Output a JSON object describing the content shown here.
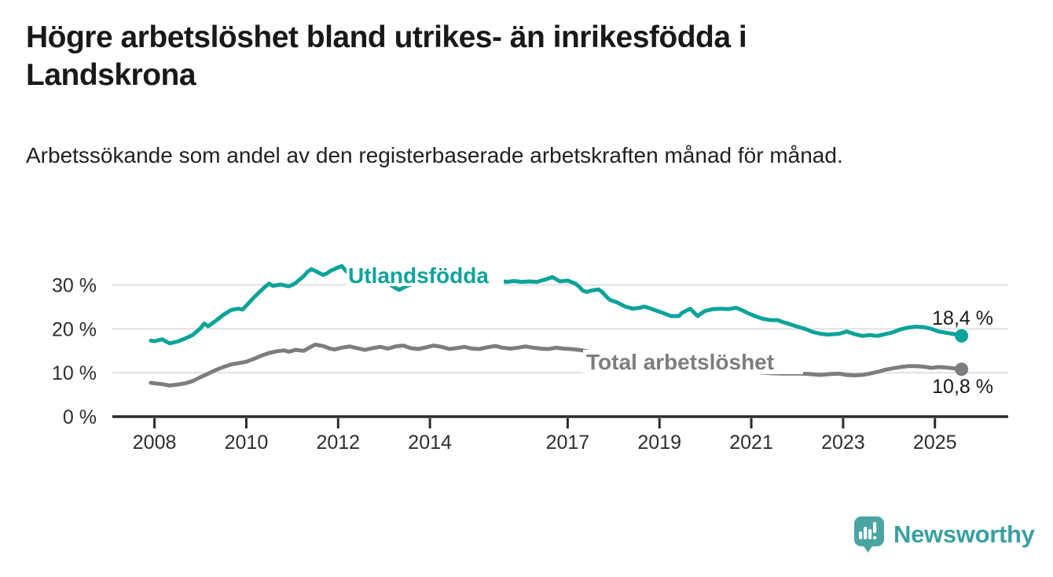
{
  "header": {
    "title": "Högre arbetslöshet bland utrikes- än inrikesfödda i Landskrona",
    "subtitle": "Arbetssökande som andel av den registerbaserade arbetskraften månad för månad."
  },
  "branding": {
    "logo_text": "Newsworthy",
    "logo_icon": "bar-chart-speech-bubble-icon",
    "logo_icon_color": "#4aa5a2",
    "logo_text_color": "#3aa0a0"
  },
  "colors": {
    "background": "#ffffff",
    "title_text": "#191919",
    "subtitle_text": "#212121",
    "grid_line": "#e0e0e0",
    "axis_line": "#2b2b2b",
    "tick_label": "#2e2e2e",
    "end_label": "#1a1a1a",
    "series_foreign_born": "#0ca39a",
    "series_total": "#7d7d81"
  },
  "chart_data": {
    "type": "line",
    "title": "",
    "xlabel": "",
    "ylabel": "",
    "unit": "%",
    "x_unit": "year (monthly observations)",
    "xlim": [
      2007.75,
      2026.3
    ],
    "ylim": [
      0,
      36.5
    ],
    "grid": "horizontal",
    "legend_position": "inline-labels",
    "x_tick_values": [
      2008,
      2010,
      2012,
      2014,
      2017,
      2019,
      2021,
      2023,
      2025
    ],
    "x_tick_labels": [
      "2008",
      "2010",
      "2012",
      "2014",
      "2017",
      "2019",
      "2021",
      "2023",
      "2025"
    ],
    "y_tick_values": [
      0,
      10,
      20,
      30
    ],
    "y_tick_labels": [
      "0 %",
      "10 %",
      "20 %",
      "30 %"
    ],
    "series": [
      {
        "name": "Utlandsfödda",
        "color": "#0ca39a",
        "end_value": 18.4,
        "end_label": "18,4 %",
        "points": [
          [
            2007.92,
            17.3
          ],
          [
            2008.0,
            17.2
          ],
          [
            2008.17,
            17.6
          ],
          [
            2008.33,
            16.7
          ],
          [
            2008.5,
            17.1
          ],
          [
            2008.67,
            17.8
          ],
          [
            2008.83,
            18.6
          ],
          [
            2009.0,
            20.1
          ],
          [
            2009.08,
            21.2
          ],
          [
            2009.17,
            20.6
          ],
          [
            2009.33,
            21.8
          ],
          [
            2009.5,
            23.2
          ],
          [
            2009.67,
            24.3
          ],
          [
            2009.83,
            24.6
          ],
          [
            2009.92,
            24.4
          ],
          [
            2010.0,
            25.3
          ],
          [
            2010.17,
            27.2
          ],
          [
            2010.33,
            28.8
          ],
          [
            2010.42,
            29.7
          ],
          [
            2010.5,
            30.3
          ],
          [
            2010.58,
            29.8
          ],
          [
            2010.75,
            30.1
          ],
          [
            2010.92,
            29.7
          ],
          [
            2011.0,
            30.0
          ],
          [
            2011.08,
            30.5
          ],
          [
            2011.25,
            32.0
          ],
          [
            2011.33,
            33.0
          ],
          [
            2011.42,
            33.6
          ],
          [
            2011.5,
            33.2
          ],
          [
            2011.58,
            32.8
          ],
          [
            2011.67,
            32.3
          ],
          [
            2011.75,
            32.6
          ],
          [
            2011.83,
            33.2
          ],
          [
            2011.92,
            33.6
          ],
          [
            2012.0,
            34.0
          ],
          [
            2012.08,
            34.3
          ],
          [
            2012.17,
            33.2
          ],
          [
            2012.25,
            32.6
          ],
          [
            2012.42,
            32.1
          ],
          [
            2012.58,
            31.8
          ],
          [
            2012.75,
            31.4
          ],
          [
            2012.92,
            31.0
          ],
          [
            2013.08,
            30.4
          ],
          [
            2013.25,
            29.3
          ],
          [
            2013.33,
            28.9
          ],
          [
            2013.5,
            29.8
          ],
          [
            2013.67,
            30.3
          ],
          [
            2013.83,
            30.7
          ],
          [
            2014.0,
            30.9
          ],
          [
            2014.25,
            30.7
          ],
          [
            2014.5,
            30.5
          ],
          [
            2014.75,
            30.7
          ],
          [
            2015.0,
            30.9
          ],
          [
            2015.25,
            30.8
          ],
          [
            2015.5,
            31.0
          ],
          [
            2015.67,
            30.7
          ],
          [
            2015.83,
            30.9
          ],
          [
            2016.0,
            30.7
          ],
          [
            2016.17,
            30.8
          ],
          [
            2016.33,
            30.7
          ],
          [
            2016.5,
            31.2
          ],
          [
            2016.67,
            31.8
          ],
          [
            2016.83,
            30.8
          ],
          [
            2017.0,
            31.0
          ],
          [
            2017.17,
            30.3
          ],
          [
            2017.25,
            29.6
          ],
          [
            2017.33,
            28.7
          ],
          [
            2017.42,
            28.4
          ],
          [
            2017.5,
            28.7
          ],
          [
            2017.67,
            29.0
          ],
          [
            2017.75,
            28.4
          ],
          [
            2017.83,
            27.5
          ],
          [
            2017.92,
            26.6
          ],
          [
            2018.08,
            26.0
          ],
          [
            2018.25,
            25.1
          ],
          [
            2018.42,
            24.6
          ],
          [
            2018.58,
            24.8
          ],
          [
            2018.67,
            25.1
          ],
          [
            2018.92,
            24.2
          ],
          [
            2019.08,
            23.6
          ],
          [
            2019.25,
            22.9
          ],
          [
            2019.42,
            22.9
          ],
          [
            2019.5,
            23.7
          ],
          [
            2019.67,
            24.6
          ],
          [
            2019.83,
            22.9
          ],
          [
            2019.92,
            23.6
          ],
          [
            2020.0,
            24.1
          ],
          [
            2020.17,
            24.5
          ],
          [
            2020.33,
            24.6
          ],
          [
            2020.5,
            24.5
          ],
          [
            2020.67,
            24.8
          ],
          [
            2020.83,
            24.1
          ],
          [
            2020.92,
            23.6
          ],
          [
            2021.08,
            22.9
          ],
          [
            2021.25,
            22.3
          ],
          [
            2021.42,
            22.0
          ],
          [
            2021.58,
            22.0
          ],
          [
            2021.67,
            21.6
          ],
          [
            2021.83,
            21.1
          ],
          [
            2022.0,
            20.5
          ],
          [
            2022.17,
            20.0
          ],
          [
            2022.33,
            19.3
          ],
          [
            2022.5,
            18.9
          ],
          [
            2022.67,
            18.7
          ],
          [
            2022.92,
            18.9
          ],
          [
            2023.08,
            19.4
          ],
          [
            2023.25,
            18.8
          ],
          [
            2023.42,
            18.4
          ],
          [
            2023.58,
            18.6
          ],
          [
            2023.75,
            18.4
          ],
          [
            2023.92,
            18.8
          ],
          [
            2024.08,
            19.2
          ],
          [
            2024.25,
            19.9
          ],
          [
            2024.42,
            20.3
          ],
          [
            2024.58,
            20.5
          ],
          [
            2024.75,
            20.4
          ],
          [
            2024.92,
            20.0
          ],
          [
            2025.08,
            19.4
          ],
          [
            2025.25,
            19.1
          ],
          [
            2025.42,
            18.8
          ],
          [
            2025.58,
            18.4
          ]
        ]
      },
      {
        "name": "Total arbetslöshet",
        "color": "#7d7d81",
        "end_value": 10.8,
        "end_label": "10,8 %",
        "points": [
          [
            2007.92,
            7.7
          ],
          [
            2008.0,
            7.6
          ],
          [
            2008.17,
            7.4
          ],
          [
            2008.33,
            7.1
          ],
          [
            2008.5,
            7.3
          ],
          [
            2008.67,
            7.6
          ],
          [
            2008.83,
            8.1
          ],
          [
            2009.0,
            9.0
          ],
          [
            2009.17,
            9.8
          ],
          [
            2009.33,
            10.6
          ],
          [
            2009.5,
            11.3
          ],
          [
            2009.67,
            11.9
          ],
          [
            2009.83,
            12.2
          ],
          [
            2010.0,
            12.5
          ],
          [
            2010.17,
            13.2
          ],
          [
            2010.33,
            13.9
          ],
          [
            2010.5,
            14.5
          ],
          [
            2010.67,
            14.9
          ],
          [
            2010.83,
            15.1
          ],
          [
            2010.92,
            14.8
          ],
          [
            2011.08,
            15.2
          ],
          [
            2011.25,
            15.0
          ],
          [
            2011.42,
            16.0
          ],
          [
            2011.5,
            16.4
          ],
          [
            2011.67,
            16.1
          ],
          [
            2011.83,
            15.5
          ],
          [
            2011.92,
            15.3
          ],
          [
            2012.08,
            15.7
          ],
          [
            2012.25,
            16.0
          ],
          [
            2012.42,
            15.6
          ],
          [
            2012.58,
            15.2
          ],
          [
            2012.75,
            15.6
          ],
          [
            2012.92,
            15.9
          ],
          [
            2013.08,
            15.5
          ],
          [
            2013.25,
            16.0
          ],
          [
            2013.42,
            16.2
          ],
          [
            2013.58,
            15.6
          ],
          [
            2013.75,
            15.4
          ],
          [
            2013.92,
            15.8
          ],
          [
            2014.08,
            16.2
          ],
          [
            2014.25,
            15.9
          ],
          [
            2014.42,
            15.4
          ],
          [
            2014.58,
            15.6
          ],
          [
            2014.75,
            15.9
          ],
          [
            2014.92,
            15.5
          ],
          [
            2015.08,
            15.4
          ],
          [
            2015.25,
            15.8
          ],
          [
            2015.42,
            16.1
          ],
          [
            2015.58,
            15.7
          ],
          [
            2015.75,
            15.5
          ],
          [
            2015.92,
            15.7
          ],
          [
            2016.08,
            16.0
          ],
          [
            2016.25,
            15.7
          ],
          [
            2016.42,
            15.5
          ],
          [
            2016.58,
            15.4
          ],
          [
            2016.75,
            15.7
          ],
          [
            2016.92,
            15.5
          ],
          [
            2017.08,
            15.4
          ],
          [
            2017.25,
            15.2
          ],
          [
            2017.42,
            14.9
          ],
          [
            2017.58,
            14.6
          ],
          [
            2017.75,
            14.4
          ],
          [
            2017.92,
            14.1
          ],
          [
            2018.17,
            13.6
          ],
          [
            2018.42,
            13.1
          ],
          [
            2018.67,
            12.7
          ],
          [
            2018.92,
            12.3
          ],
          [
            2019.17,
            11.9
          ],
          [
            2019.42,
            11.5
          ],
          [
            2019.67,
            11.2
          ],
          [
            2019.92,
            11.0
          ],
          [
            2020.17,
            10.9
          ],
          [
            2020.42,
            10.7
          ],
          [
            2020.67,
            10.5
          ],
          [
            2020.92,
            10.3
          ],
          [
            2021.17,
            10.1
          ],
          [
            2021.42,
            9.9
          ],
          [
            2021.67,
            9.8
          ],
          [
            2021.92,
            9.8
          ],
          [
            2022.08,
            9.8
          ],
          [
            2022.25,
            9.7
          ],
          [
            2022.5,
            9.5
          ],
          [
            2022.75,
            9.7
          ],
          [
            2022.92,
            9.8
          ],
          [
            2023.08,
            9.5
          ],
          [
            2023.25,
            9.4
          ],
          [
            2023.42,
            9.5
          ],
          [
            2023.58,
            9.8
          ],
          [
            2023.75,
            10.2
          ],
          [
            2023.92,
            10.7
          ],
          [
            2024.08,
            11.0
          ],
          [
            2024.25,
            11.3
          ],
          [
            2024.42,
            11.5
          ],
          [
            2024.58,
            11.5
          ],
          [
            2024.75,
            11.4
          ],
          [
            2024.92,
            11.1
          ],
          [
            2025.08,
            11.3
          ],
          [
            2025.25,
            11.2
          ],
          [
            2025.42,
            11.0
          ],
          [
            2025.58,
            10.8
          ]
        ]
      }
    ]
  }
}
